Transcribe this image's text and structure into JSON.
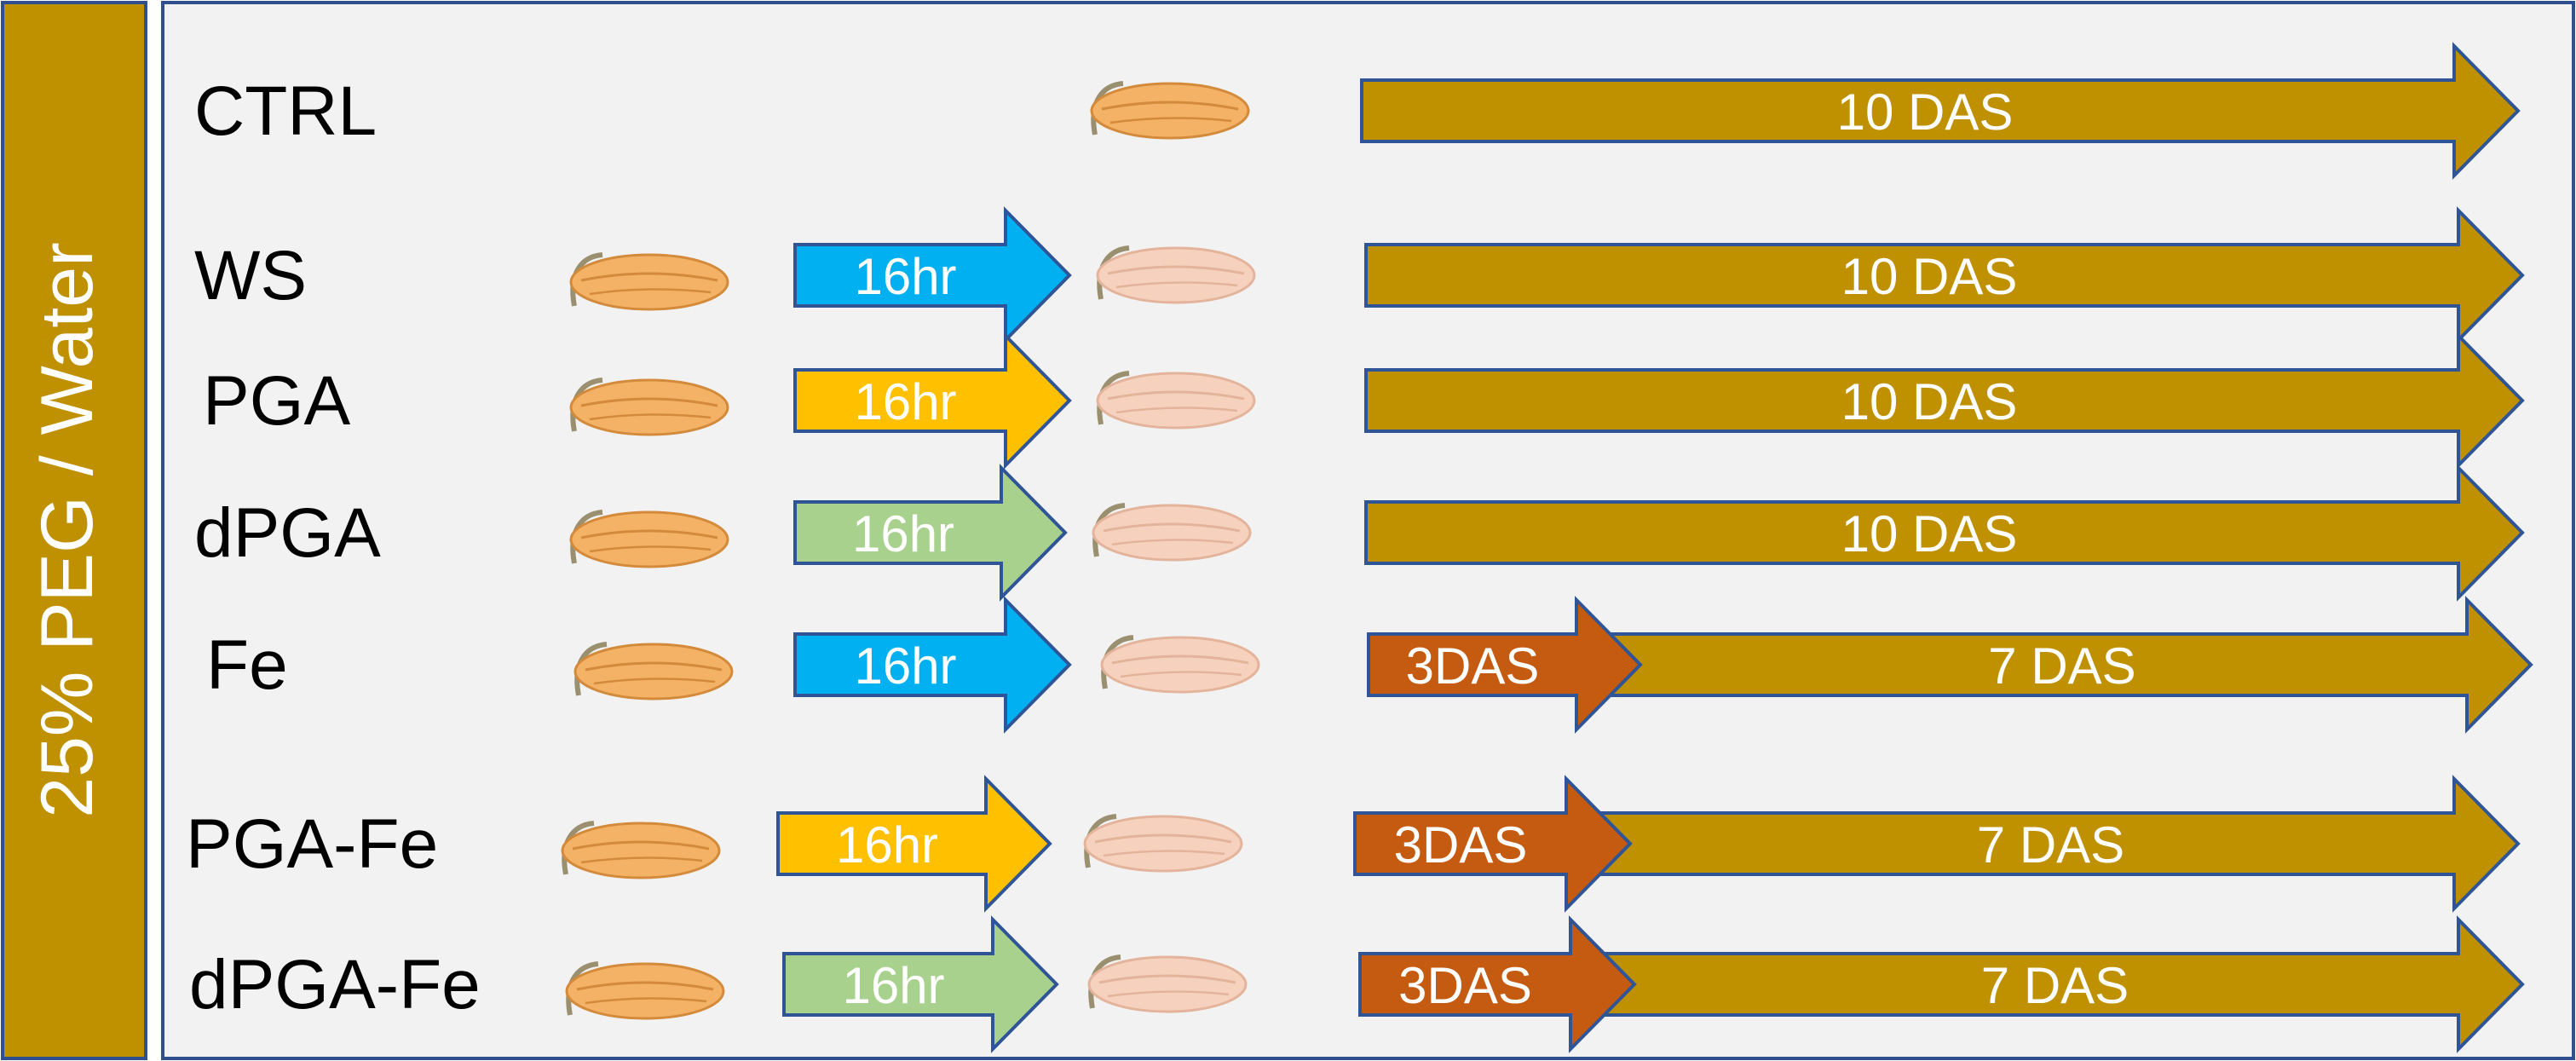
{
  "side_label": "25% PEG / Water",
  "colors": {
    "side_bar": "#BF9000",
    "side_bar_border": "#2F4F8F",
    "panel_bg": "#F2F2F2",
    "panel_border": "#2F4F8F",
    "arrow_outline": "#2F5597",
    "das_arrow": "#BF9000",
    "das3_arrow": "#C55A11",
    "blue_arrow": "#00B0F0",
    "yellow_arrow": "#FFC000",
    "green_arrow": "#A9D18E",
    "seed_dry": "#F4B266",
    "seed_dry_edge": "#D38A3A",
    "seed_soaked": "#F6D2BE",
    "seed_soaked_edge": "#E3B49B",
    "label_text": "#000000",
    "arrow_text": "#FFFFFF"
  },
  "rows": [
    {
      "label": "CTRL",
      "arrows": [
        {
          "text": "10 DAS",
          "color": "das_arrow"
        }
      ]
    },
    {
      "label": "WS",
      "soak": {
        "text": "16hr",
        "color": "blue_arrow"
      },
      "arrows": [
        {
          "text": "10 DAS",
          "color": "das_arrow"
        }
      ]
    },
    {
      "label": "PGA",
      "soak": {
        "text": "16hr",
        "color": "yellow_arrow"
      },
      "arrows": [
        {
          "text": "10 DAS",
          "color": "das_arrow"
        }
      ]
    },
    {
      "label": "dPGA",
      "soak": {
        "text": "16hr",
        "color": "green_arrow"
      },
      "arrows": [
        {
          "text": "10 DAS",
          "color": "das_arrow"
        }
      ]
    },
    {
      "label": "Fe",
      "soak": {
        "text": "16hr",
        "color": "blue_arrow"
      },
      "arrows": [
        {
          "text": "3DAS",
          "color": "das3_arrow"
        },
        {
          "text": "7 DAS",
          "color": "das_arrow"
        }
      ]
    },
    {
      "label": "PGA-Fe",
      "soak": {
        "text": "16hr",
        "color": "yellow_arrow"
      },
      "arrows": [
        {
          "text": "3DAS",
          "color": "das3_arrow"
        },
        {
          "text": "7 DAS",
          "color": "das_arrow"
        }
      ]
    },
    {
      "label": "dPGA-Fe",
      "soak": {
        "text": "16hr",
        "color": "green_arrow"
      },
      "arrows": [
        {
          "text": "3DAS",
          "color": "das3_arrow"
        },
        {
          "text": "7 DAS",
          "color": "das_arrow"
        }
      ]
    }
  ]
}
